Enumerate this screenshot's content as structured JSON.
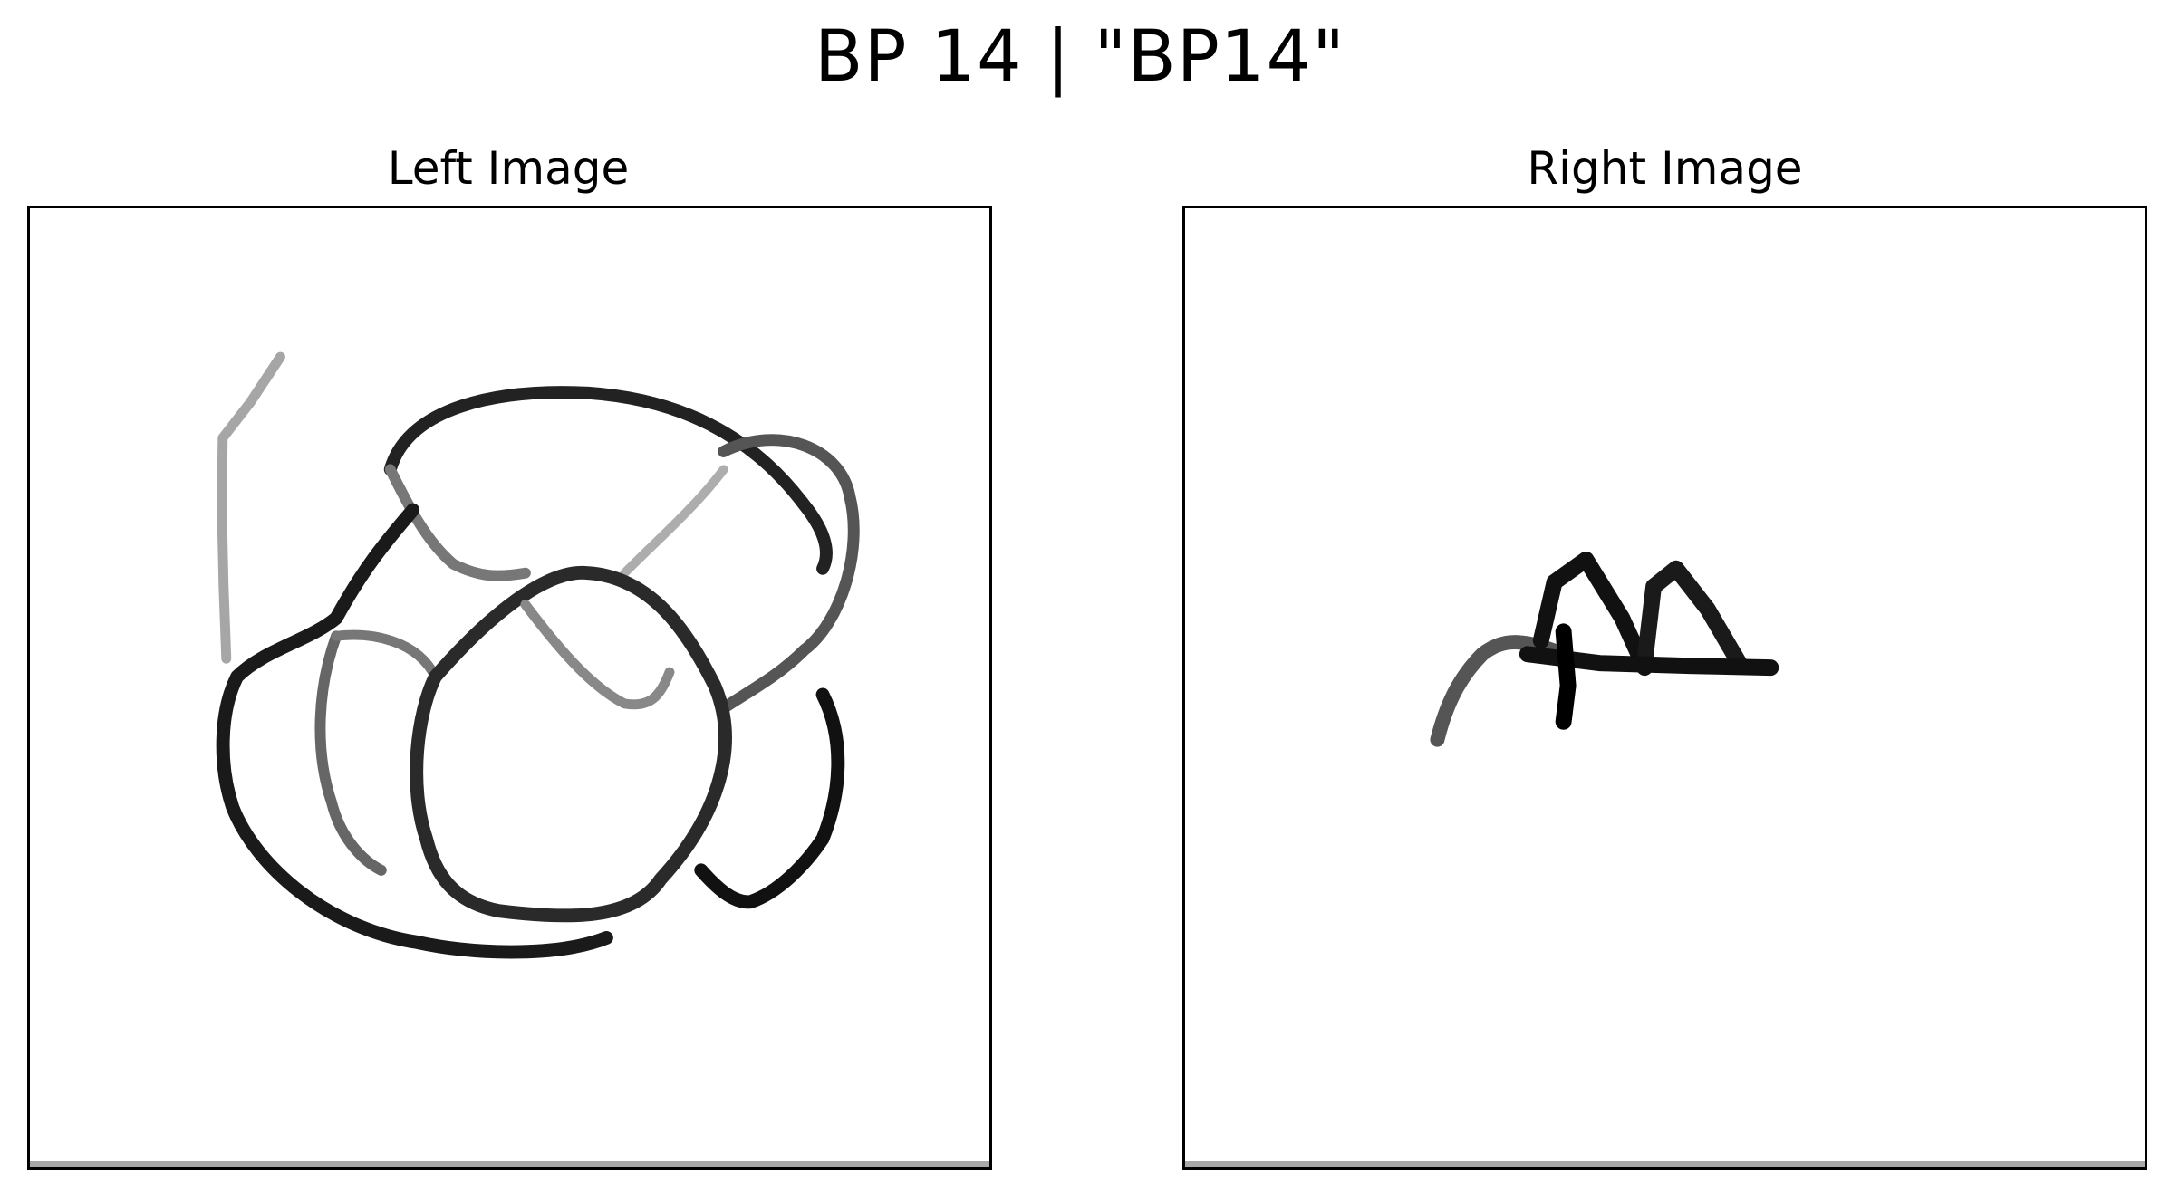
{
  "figure": {
    "title": "BP 14 | \"BP14\""
  },
  "panels": {
    "left": {
      "title": "Left Image"
    },
    "right": {
      "title": "Right Image"
    }
  }
}
